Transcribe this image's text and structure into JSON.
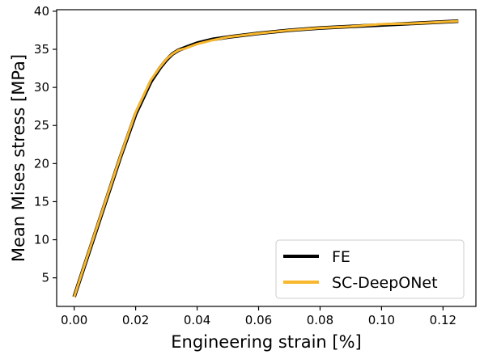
{
  "chart_data": {
    "type": "line",
    "xlabel": "Engineering strain [%]",
    "ylabel": "Mean Mises stress [MPa]",
    "xlim": [
      -0.0057,
      0.1307
    ],
    "ylim": [
      1.25,
      40.2
    ],
    "xticks": [
      0.0,
      0.02,
      0.04,
      0.06,
      0.08,
      0.1,
      0.12
    ],
    "xtick_labels": [
      "0.00",
      "0.02",
      "0.04",
      "0.06",
      "0.08",
      "0.10",
      "0.12"
    ],
    "yticks": [
      5,
      10,
      15,
      20,
      25,
      30,
      35,
      40
    ],
    "ytick_labels": [
      "5",
      "10",
      "15",
      "20",
      "25",
      "30",
      "35",
      "40"
    ],
    "grid": false,
    "legend_position": "lower-right",
    "series": [
      {
        "name": "FE",
        "color": "#000000",
        "x": [
          0.0,
          0.005,
          0.01,
          0.015,
          0.02,
          0.025,
          0.028,
          0.03,
          0.032,
          0.034,
          0.036,
          0.038,
          0.04,
          0.045,
          0.05,
          0.06,
          0.07,
          0.08,
          0.09,
          0.1,
          0.11,
          0.12,
          0.125
        ],
        "y": [
          2.5,
          8.6,
          14.7,
          20.8,
          26.5,
          30.8,
          32.6,
          33.6,
          34.4,
          34.9,
          35.2,
          35.5,
          35.8,
          36.3,
          36.6,
          37.1,
          37.5,
          37.8,
          38.0,
          38.2,
          38.4,
          38.6,
          38.7
        ]
      },
      {
        "name": "SC-DeepONet",
        "color": "#f8b72c",
        "x": [
          0.0,
          0.005,
          0.01,
          0.015,
          0.02,
          0.025,
          0.028,
          0.03,
          0.032,
          0.034,
          0.036,
          0.038,
          0.04,
          0.045,
          0.05,
          0.06,
          0.07,
          0.08,
          0.09,
          0.1,
          0.11,
          0.12,
          0.125
        ],
        "y": [
          2.5,
          8.7,
          14.8,
          20.9,
          26.7,
          31.0,
          32.7,
          33.7,
          34.4,
          34.9,
          35.1,
          35.4,
          35.7,
          36.2,
          36.6,
          37.1,
          37.5,
          37.8,
          38.0,
          38.3,
          38.4,
          38.6,
          38.7
        ]
      }
    ]
  }
}
